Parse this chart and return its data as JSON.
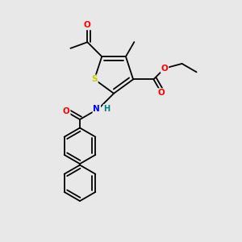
{
  "bg_color": "#e8e8e8",
  "atom_colors": {
    "S": "#cccc00",
    "O": "#ff0000",
    "N": "#0000ff",
    "H": "#008080",
    "C": "#000000"
  },
  "bond_color": "#000000",
  "lw": 1.3,
  "dbo": 0.018
}
